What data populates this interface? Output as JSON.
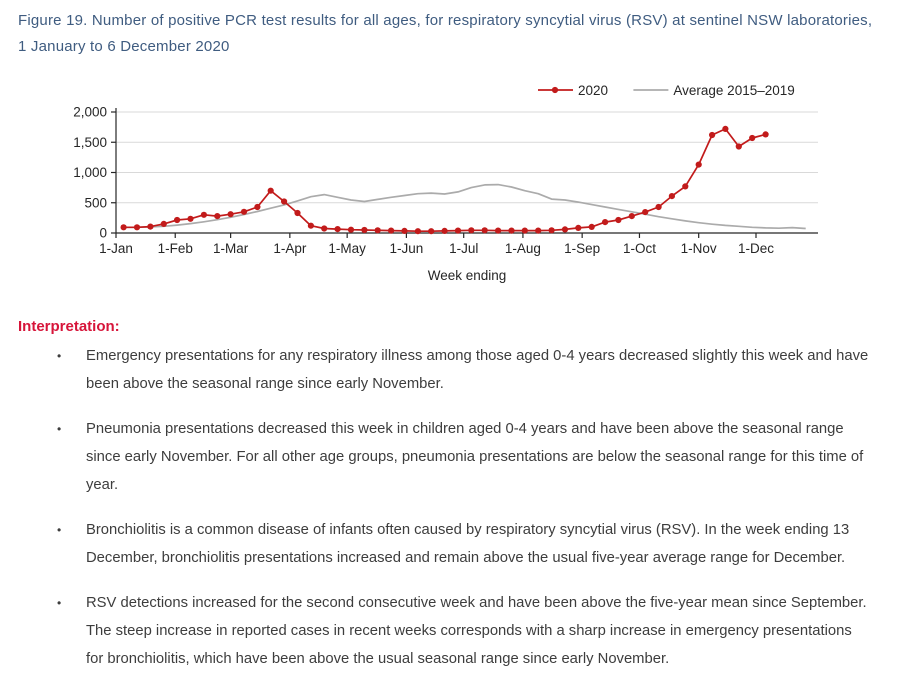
{
  "figure": {
    "title": "Figure 19. Number of positive PCR test results for all ages, for respiratory syncytial virus (RSV) at sentinel NSW laboratories, 1 January to 6 December 2020"
  },
  "chart_data": {
    "type": "line",
    "title": "",
    "xlabel": "Week ending",
    "ylabel": "",
    "ylim": [
      0,
      2000
    ],
    "grid": true,
    "legend_position": "top",
    "x_tick_labels": [
      "1-Jan",
      "1-Feb",
      "1-Mar",
      "1-Apr",
      "1-May",
      "1-Jun",
      "1-Jul",
      "1-Aug",
      "1-Sep",
      "1-Oct",
      "1-Nov",
      "1-Dec"
    ],
    "y_ticks": [
      {
        "v": 0,
        "label": "0"
      },
      {
        "v": 500,
        "label": "500"
      },
      {
        "v": 1000,
        "label": "1,000"
      },
      {
        "v": 1500,
        "label": "1,500"
      },
      {
        "v": 2000,
        "label": "2,000"
      }
    ],
    "week_ending_dates": [
      "5 Jan",
      "12 Jan",
      "19 Jan",
      "26 Jan",
      "2 Feb",
      "9 Feb",
      "16 Feb",
      "23 Feb",
      "1 Mar",
      "8 Mar",
      "15 Mar",
      "22 Mar",
      "29 Mar",
      "5 Apr",
      "12 Apr",
      "19 Apr",
      "26 Apr",
      "3 May",
      "10 May",
      "17 May",
      "24 May",
      "31 May",
      "7 Jun",
      "14 Jun",
      "21 Jun",
      "28 Jun",
      "5 Jul",
      "12 Jul",
      "19 Jul",
      "26 Jul",
      "2 Aug",
      "9 Aug",
      "16 Aug",
      "23 Aug",
      "30 Aug",
      "6 Sep",
      "13 Sep",
      "20 Sep",
      "27 Sep",
      "4 Oct",
      "11 Oct",
      "18 Oct",
      "25 Oct",
      "1 Nov",
      "8 Nov",
      "15 Nov",
      "22 Nov",
      "29 Nov",
      "6 Dec"
    ],
    "series": [
      {
        "name": "2020",
        "color": "#c21b1b",
        "marker": "circle",
        "values": [
          95,
          95,
          105,
          150,
          215,
          235,
          300,
          280,
          310,
          350,
          430,
          700,
          520,
          330,
          120,
          75,
          65,
          55,
          50,
          45,
          40,
          35,
          30,
          30,
          35,
          40,
          45,
          45,
          40,
          40,
          40,
          40,
          45,
          60,
          85,
          100,
          180,
          215,
          280,
          345,
          430,
          610,
          770,
          1130,
          1620,
          1720,
          1430,
          1570,
          1630
        ]
      },
      {
        "name": "Average 2015–2019",
        "color": "#ababab",
        "marker": "none",
        "values": [
          95,
          95,
          100,
          110,
          130,
          155,
          185,
          220,
          260,
          305,
          355,
          410,
          465,
          530,
          600,
          635,
          590,
          545,
          520,
          555,
          590,
          620,
          650,
          660,
          645,
          680,
          750,
          795,
          800,
          760,
          700,
          650,
          560,
          545,
          510,
          470,
          430,
          390,
          350,
          310,
          270,
          235,
          200,
          170,
          145,
          125,
          110,
          95,
          85,
          80,
          90,
          75
        ]
      }
    ]
  },
  "interpretation": {
    "heading": "Interpretation:",
    "bullet_glyph": "•",
    "bullets": [
      "Emergency presentations for any respiratory illness among those aged 0-4 years decreased slightly this week and have been above the seasonal range since early November.",
      "Pneumonia presentations decreased this week in children aged 0-4 years and have been above the seasonal range since early November. For all other age groups, pneumonia presentations are below the seasonal range for this time of year.",
      "Bronchiolitis is a common disease of infants often caused by respiratory syncytial virus (RSV). In the week ending 13 December, bronchiolitis presentations increased and remain above the usual five-year average range for December.",
      "RSV detections increased for the second consecutive week and have been above the five-year mean since September. The steep increase in reported cases in recent weeks corresponds with a sharp increase in emergency presentations for bronchiolitis, which have been above the usual seasonal range since early November."
    ]
  },
  "colors": {
    "title_blue": "#3f5c80",
    "heading_red": "#d7153a",
    "body_text": "#3d3d3d",
    "axis": "#262626",
    "gridline": "#d9d9d9",
    "series_2020": "#c21b1b",
    "series_avg": "#ababab"
  }
}
